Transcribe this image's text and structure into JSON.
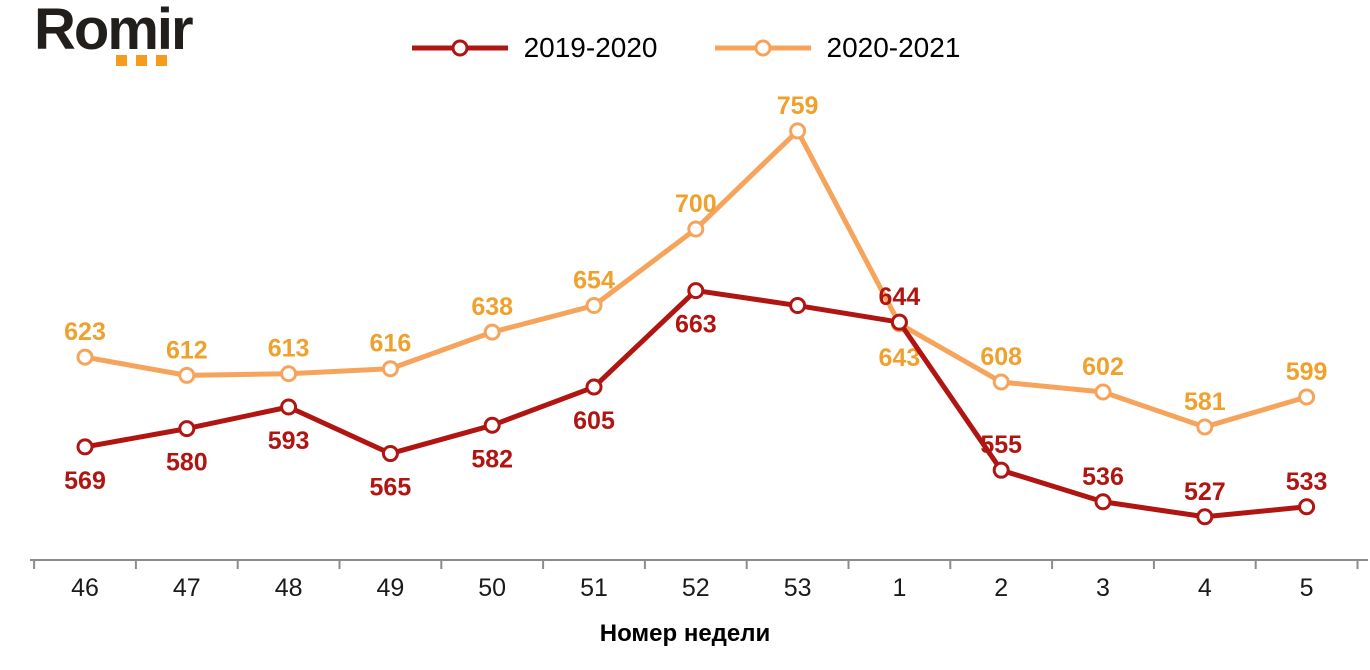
{
  "brand": {
    "name": "Romir"
  },
  "colors": {
    "series_red": "#B11512",
    "series_orange": "#F6A45C",
    "label_orange": "#F0A02C",
    "logo_orange": "#F59C1E",
    "axis_gray": "#8C8C8C",
    "text_dark": "#1A1A1A"
  },
  "chart_data": {
    "type": "line",
    "title": "",
    "xlabel": "Номер недели",
    "ylabel": "",
    "categories": [
      "46",
      "47",
      "48",
      "49",
      "50",
      "51",
      "52",
      "53",
      "1",
      "2",
      "3",
      "4",
      "5"
    ],
    "ylim": [
      500,
      790
    ],
    "grid": false,
    "legend_position": "top",
    "series": [
      {
        "name": "2019-2020",
        "color": "#B11512",
        "label_color": "#B11512",
        "values": [
          569,
          580,
          593,
          565,
          582,
          605,
          663,
          654,
          644,
          555,
          536,
          527,
          533
        ],
        "labels": [
          "569",
          "580",
          "593",
          "565",
          "582",
          "605",
          "663",
          "",
          "644",
          "555",
          "536",
          "527",
          "533"
        ],
        "label_side": [
          "below",
          "below",
          "below",
          "below",
          "below",
          "below",
          "below",
          "none",
          "above",
          "above",
          "above",
          "above",
          "above"
        ]
      },
      {
        "name": "2020-2021",
        "color": "#F6A45C",
        "label_color": "#F0A02C",
        "values": [
          623,
          612,
          613,
          616,
          638,
          654,
          700,
          759,
          643,
          608,
          602,
          581,
          599
        ],
        "labels": [
          "623",
          "612",
          "613",
          "616",
          "638",
          "654",
          "700",
          "759",
          "643",
          "608",
          "602",
          "581",
          "599"
        ],
        "label_side": [
          "above",
          "above",
          "above",
          "above",
          "above",
          "above",
          "above",
          "above",
          "below",
          "above",
          "above",
          "above",
          "above"
        ]
      }
    ]
  }
}
